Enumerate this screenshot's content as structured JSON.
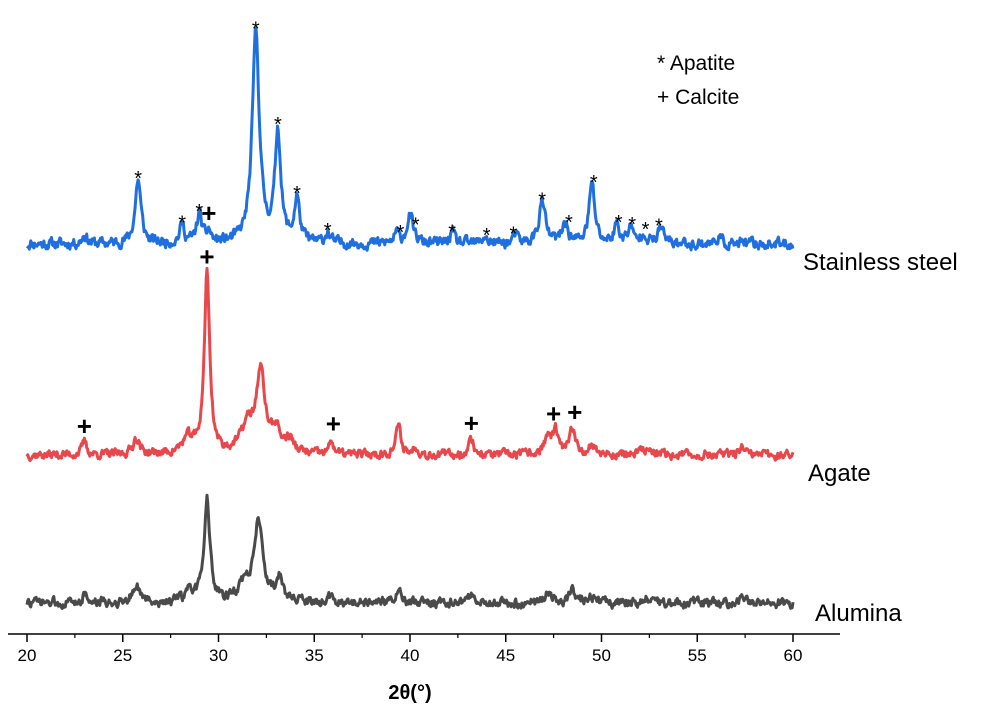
{
  "chart_data": {
    "type": "line",
    "title": "",
    "xlabel": "2θ(°)",
    "ylabel": "",
    "xlim": [
      20,
      60
    ],
    "xticks": [
      20,
      25,
      30,
      35,
      40,
      45,
      50,
      55,
      60
    ],
    "grid": false,
    "legend": {
      "placement": "top-right",
      "entries": [
        {
          "symbol": "*",
          "label": "Apatite"
        },
        {
          "symbol": "+",
          "label": "Calcite"
        }
      ]
    },
    "series": [
      {
        "name": "Stainless steel",
        "color": "#1f6fe0",
        "peaks": [
          [
            23.0,
            0.1,
            0.15
          ],
          [
            25.8,
            0.7,
            0.18
          ],
          [
            28.1,
            0.2,
            0.15
          ],
          [
            29.0,
            0.32,
            0.16
          ],
          [
            29.5,
            0.12,
            0.12
          ],
          [
            31.95,
            2.3,
            0.22
          ],
          [
            33.1,
            1.2,
            0.18
          ],
          [
            34.1,
            0.48,
            0.16
          ],
          [
            35.7,
            0.12,
            0.14
          ],
          [
            39.3,
            0.1,
            0.14
          ],
          [
            40.0,
            0.3,
            0.2
          ],
          [
            42.2,
            0.12,
            0.15
          ],
          [
            43.9,
            0.08,
            0.14
          ],
          [
            45.5,
            0.09,
            0.14
          ],
          [
            46.9,
            0.46,
            0.2
          ],
          [
            48.1,
            0.22,
            0.18
          ],
          [
            49.5,
            0.65,
            0.18
          ],
          [
            50.8,
            0.2,
            0.17
          ],
          [
            51.5,
            0.18,
            0.15
          ],
          [
            52.2,
            0.13,
            0.15
          ],
          [
            53.1,
            0.18,
            0.17
          ],
          [
            56.1,
            0.08,
            0.14
          ]
        ],
        "annotations": [
          {
            "x": 25.8,
            "symbol": "*"
          },
          {
            "x": 28.1,
            "symbol": "*"
          },
          {
            "x": 29.0,
            "symbol": "*"
          },
          {
            "x": 29.5,
            "symbol": "+"
          },
          {
            "x": 31.95,
            "symbol": "*"
          },
          {
            "x": 33.1,
            "symbol": "*"
          },
          {
            "x": 34.1,
            "symbol": "*"
          },
          {
            "x": 35.7,
            "symbol": "*"
          },
          {
            "x": 39.5,
            "symbol": "*"
          },
          {
            "x": 40.3,
            "symbol": "*"
          },
          {
            "x": 42.2,
            "symbol": "*"
          },
          {
            "x": 44.0,
            "symbol": "*"
          },
          {
            "x": 45.4,
            "symbol": "*"
          },
          {
            "x": 46.9,
            "symbol": "*"
          },
          {
            "x": 48.3,
            "symbol": "*"
          },
          {
            "x": 49.6,
            "symbol": "*"
          },
          {
            "x": 50.9,
            "symbol": "*"
          },
          {
            "x": 51.6,
            "symbol": "*"
          },
          {
            "x": 52.3,
            "symbol": "*"
          },
          {
            "x": 53.0,
            "symbol": "*"
          }
        ]
      },
      {
        "name": "Agate",
        "color": "#e8474c",
        "peaks": [
          [
            23.0,
            0.18,
            0.14
          ],
          [
            25.7,
            0.22,
            0.2
          ],
          [
            28.4,
            0.2,
            0.35
          ],
          [
            29.4,
            2.4,
            0.17
          ],
          [
            31.5,
            0.35,
            0.4
          ],
          [
            32.2,
            1.05,
            0.28
          ],
          [
            33.0,
            0.3,
            0.25
          ],
          [
            33.7,
            0.18,
            0.25
          ],
          [
            35.9,
            0.2,
            0.12
          ],
          [
            39.4,
            0.38,
            0.16
          ],
          [
            40.3,
            0.1,
            0.15
          ],
          [
            43.2,
            0.22,
            0.15
          ],
          [
            47.2,
            0.24,
            0.22
          ],
          [
            47.6,
            0.28,
            0.16
          ],
          [
            48.5,
            0.35,
            0.18
          ],
          [
            49.5,
            0.12,
            0.22
          ],
          [
            52.3,
            0.07,
            0.3
          ],
          [
            57.3,
            0.09,
            0.15
          ]
        ],
        "annotations": [
          {
            "x": 23.0,
            "symbol": "+"
          },
          {
            "x": 29.4,
            "symbol": "+"
          },
          {
            "x": 36.0,
            "symbol": "+"
          },
          {
            "x": 43.2,
            "symbol": "+"
          },
          {
            "x": 47.5,
            "symbol": "+"
          },
          {
            "x": 48.6,
            "symbol": "+"
          }
        ]
      },
      {
        "name": "Alumina",
        "color": "#4a4a4a",
        "peaks": [
          [
            23.0,
            0.1,
            0.15
          ],
          [
            25.7,
            0.22,
            0.22
          ],
          [
            28.5,
            0.12,
            0.3
          ],
          [
            29.4,
            1.3,
            0.18
          ],
          [
            31.4,
            0.22,
            0.4
          ],
          [
            32.1,
            1.0,
            0.26
          ],
          [
            33.2,
            0.28,
            0.22
          ],
          [
            35.9,
            0.1,
            0.14
          ],
          [
            39.4,
            0.12,
            0.2
          ],
          [
            43.2,
            0.1,
            0.16
          ],
          [
            47.2,
            0.13,
            0.25
          ],
          [
            48.5,
            0.15,
            0.22
          ],
          [
            49.4,
            0.08,
            0.25
          ],
          [
            52.4,
            0.05,
            0.3
          ],
          [
            57.4,
            0.08,
            0.15
          ]
        ],
        "annotations": []
      }
    ]
  }
}
